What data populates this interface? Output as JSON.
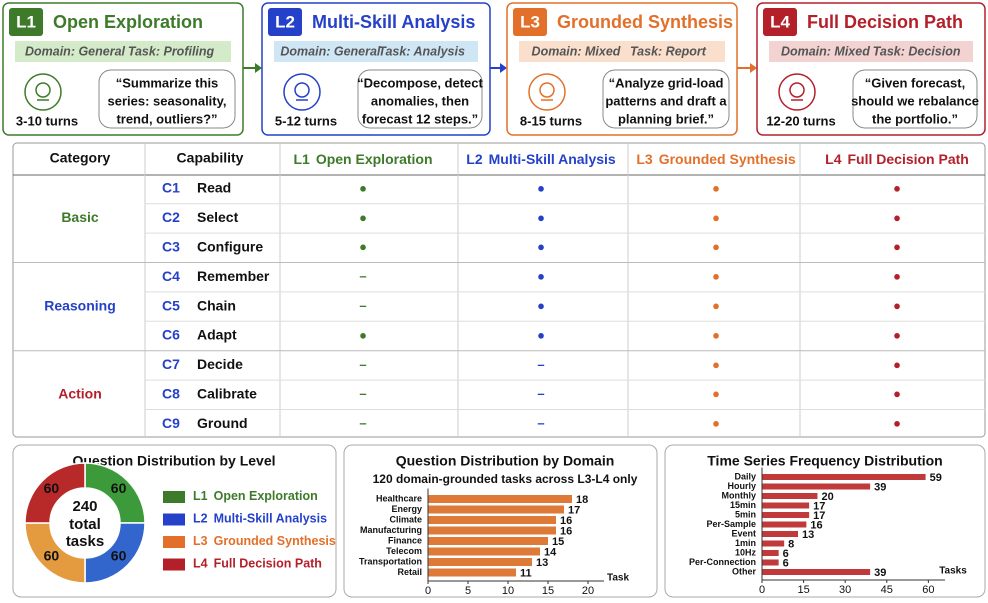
{
  "levels": [
    {
      "badge": "L1",
      "title": "Open Exploration",
      "domain": "Domain: General",
      "task": "Task: Profiling",
      "quote": [
        "“Summarize this",
        "series: seasonality,",
        "trend, outliers?”"
      ],
      "turns": "3-10 turns",
      "color": "#3d7b2a",
      "light": "#d3ebc8"
    },
    {
      "badge": "L2",
      "title": "Multi-Skill Analysis",
      "domain": "Domain: General",
      "task": "Task: Analysis",
      "quote": [
        "“Decompose, detect",
        "anomalies, then",
        "forecast 12 steps.”"
      ],
      "turns": "5-12 turns",
      "color": "#2541c9",
      "light": "#cfe6f5"
    },
    {
      "badge": "L3",
      "title": "Grounded Synthesis",
      "domain": "Domain: Mixed",
      "task": "Task: Report",
      "quote": [
        "“Analyze grid-load",
        "patterns and draft a",
        "planning brief.”"
      ],
      "turns": "8-15 turns",
      "color": "#e2702a",
      "light": "#f9dfcc"
    },
    {
      "badge": "L4",
      "title": "Full Decision Path",
      "domain": "Domain: Mixed",
      "task": "Task: Decision",
      "quote": [
        "“Given forecast,",
        "should we rebalance",
        "the portfolio.”"
      ],
      "turns": "12-20 turns",
      "color": "#b3202a",
      "light": "#f3d2d2"
    }
  ],
  "table": {
    "header": [
      "Category",
      "Capability"
    ],
    "groups": [
      {
        "name": "Basic",
        "color": "#3d7b2a",
        "rows": [
          {
            "id": "C1",
            "name": "Read",
            "cells": [
              "●",
              "●",
              "●",
              "●"
            ]
          },
          {
            "id": "C2",
            "name": "Select",
            "cells": [
              "●",
              "●",
              "●",
              "●"
            ]
          },
          {
            "id": "C3",
            "name": "Configure",
            "cells": [
              "●",
              "●",
              "●",
              "●"
            ]
          }
        ]
      },
      {
        "name": "Reasoning",
        "color": "#2541c9",
        "rows": [
          {
            "id": "C4",
            "name": "Remember",
            "cells": [
              "–",
              "●",
              "●",
              "●"
            ]
          },
          {
            "id": "C5",
            "name": "Chain",
            "cells": [
              "–",
              "●",
              "●",
              "●"
            ]
          },
          {
            "id": "C6",
            "name": "Adapt",
            "cells": [
              "●",
              "●",
              "●",
              "●"
            ]
          }
        ]
      },
      {
        "name": "Action",
        "color": "#b3202a",
        "rows": [
          {
            "id": "C7",
            "name": "Decide",
            "cells": [
              "–",
              "–",
              "●",
              "●"
            ]
          },
          {
            "id": "C8",
            "name": "Calibrate",
            "cells": [
              "–",
              "–",
              "●",
              "●"
            ]
          },
          {
            "id": "C9",
            "name": "Ground",
            "cells": [
              "–",
              "–",
              "●",
              "●"
            ]
          }
        ]
      }
    ]
  },
  "chart_data": [
    {
      "type": "donut",
      "title": "Question Distribution by Level",
      "categories": [
        "L1",
        "L2",
        "L3",
        "L4"
      ],
      "values": [
        60,
        60,
        60,
        60
      ],
      "colors": [
        "#3d9a3a",
        "#3366cc",
        "#e49a3e",
        "#b82a2a"
      ],
      "total": 240,
      "total_label": [
        "total",
        "tasks"
      ]
    },
    {
      "type": "hbar",
      "title": "Question Distribution by Domain",
      "subtitle": "120 domain-grounded tasks across L3-L4 only",
      "categories": [
        "Healthcare",
        "Energy",
        "Climate",
        "Manufacturing",
        "Finance",
        "Telecom",
        "Transportation",
        "Retail"
      ],
      "values": [
        18,
        17,
        16,
        16,
        15,
        14,
        13,
        11
      ],
      "color": "#dd7a38",
      "xlim": [
        0,
        22
      ],
      "xticks": [
        0,
        5,
        10,
        15,
        20
      ],
      "x_label": "Task"
    },
    {
      "type": "hbar",
      "title": "Time Series Frequency Distribution",
      "categories": [
        "Daily",
        "Hourly",
        "Monthly",
        "15min",
        "5min",
        "Per-Sample",
        "Event",
        "1min",
        "10Hz",
        "Per-Connection",
        "Other"
      ],
      "values": [
        59,
        39,
        20,
        17,
        17,
        16,
        13,
        8,
        6,
        6,
        39
      ],
      "color": "#c0393b",
      "xlim": [
        0,
        66
      ],
      "xticks": [
        0,
        15,
        30,
        45,
        60
      ],
      "x_label": "Tasks"
    }
  ]
}
